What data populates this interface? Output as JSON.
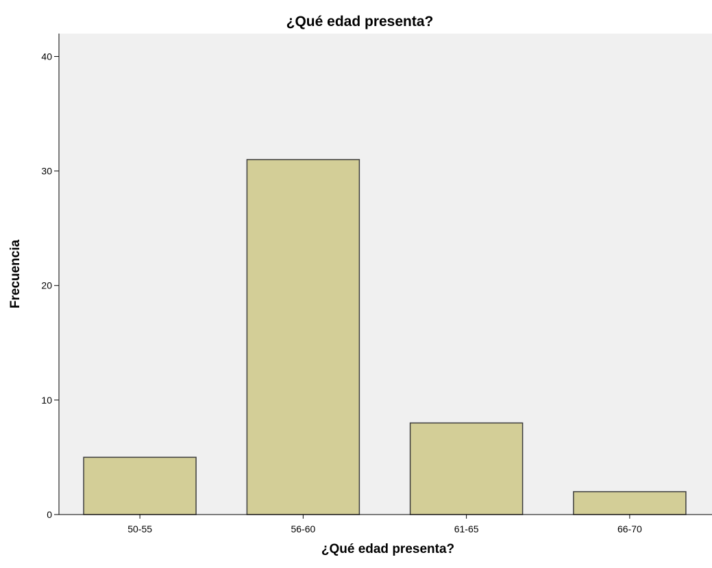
{
  "chart_data": {
    "type": "bar",
    "title": "¿Qué edad presenta?",
    "xlabel": "¿Qué edad presenta?",
    "ylabel": "Frecuencia",
    "categories": [
      "50-55",
      "56-60",
      "61-65",
      "66-70"
    ],
    "values": [
      5,
      31,
      8,
      2
    ],
    "ylim": [
      0,
      42
    ],
    "yticks": [
      0,
      10,
      20,
      30,
      40
    ],
    "grid": false,
    "legend": "none",
    "colors": {
      "plot_background": "#f0f0f0",
      "bar_fill": "#d3ce97",
      "bar_stroke": "#3c3c3c",
      "axis": "#000000"
    }
  }
}
